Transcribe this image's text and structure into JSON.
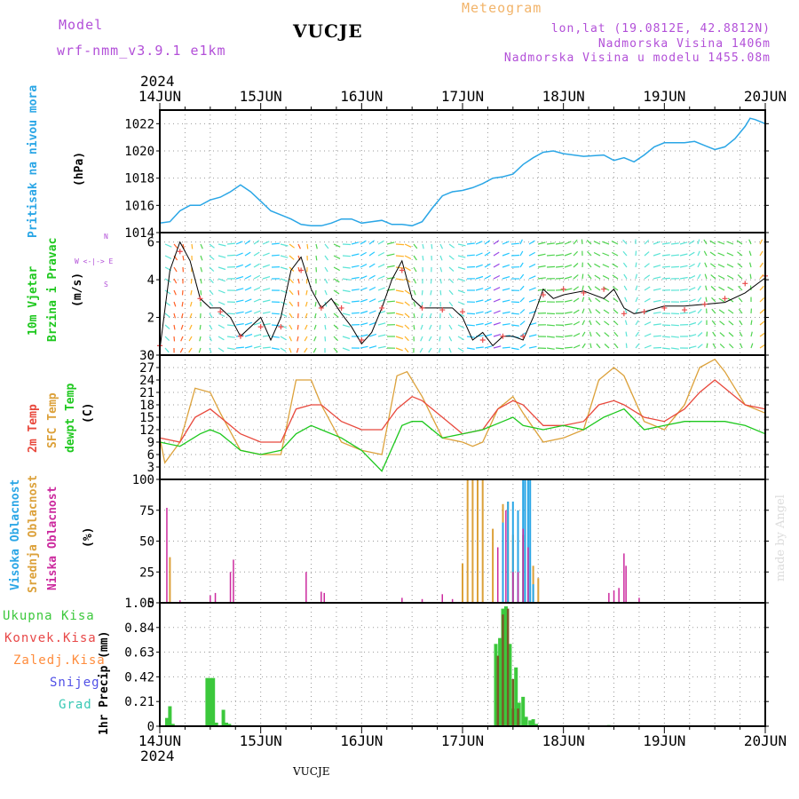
{
  "header": {
    "model_label": "Model",
    "model_value": "wrf-nmm_v3.9.1 e1km",
    "chart_title": "Meteogram",
    "station": "VUCJE",
    "lonlat": "lon,lat (19.0812E, 42.8812N)",
    "altitude": "Nadmorska Visina 1406m",
    "model_altitude": "Nadmorska Visina u modelu 1455.08m",
    "watermark": "made by Angel",
    "footer_station": "VUCJE",
    "year_top": "2024",
    "year_bottom": "2024"
  },
  "axis_labels": {
    "pressure": [
      "Pritisak na nivou mora",
      "(hPa)"
    ],
    "wind": [
      "10m Vjetar",
      "Brzina i Pravac",
      "(m/s)"
    ],
    "wind_compass": [
      "N",
      "W <-|-> E",
      "S"
    ],
    "temp": [
      "2m Temp",
      "SFC Temp",
      "dewpt Temp",
      "(C)"
    ],
    "cloud": [
      "Visoka Oblacnost",
      "Srednja Oblacnost",
      "Niska Oblacnost",
      "(%)"
    ],
    "precip_unit": "1hr Precip (mm)",
    "precip_legend": [
      "Ukupna Kisa",
      "Konvek.Kisa",
      "Zaledj.Kisa",
      "Snijeg",
      "Grad"
    ]
  },
  "colors": {
    "pressure": "#2aa6e6",
    "t2m": "#e8483c",
    "tsfc": "#dca13a",
    "dewpt": "#1ec81e",
    "wind_speed": "#000000",
    "wind_gust": "#e84a4a",
    "cloud_high": "#2aa6e6",
    "cloud_mid": "#dca13a",
    "cloud_low": "#cc2a9e",
    "rain_total": "#3cc83c",
    "rain_conv": "#e84848",
    "rain_frz": "#ff8c3c",
    "snow": "#5050e6",
    "hail": "#38c8b4",
    "model": "#b24fd8",
    "title_orange": "#f2b46a"
  },
  "chart_data": [
    {
      "type": "line",
      "id": "pressure",
      "x_categories": [
        "14JUN",
        "15JUN",
        "16JUN",
        "17JUN",
        "18JUN",
        "19JUN",
        "20JUN"
      ],
      "ylim": [
        1014,
        1023
      ],
      "yticks": [
        1014,
        1016,
        1018,
        1020,
        1022
      ],
      "grid": true,
      "series": [
        {
          "name": "Pritisak na nivou mora",
          "x_days": [
            0,
            0.1,
            0.2,
            0.3,
            0.4,
            0.5,
            0.6,
            0.7,
            0.8,
            0.9,
            1.0,
            1.1,
            1.2,
            1.3,
            1.4,
            1.5,
            1.6,
            1.7,
            1.8,
            1.9,
            2.0,
            2.1,
            2.2,
            2.3,
            2.4,
            2.5,
            2.6,
            2.7,
            2.8,
            2.9,
            3.0,
            3.1,
            3.2,
            3.3,
            3.4,
            3.5,
            3.6,
            3.7,
            3.8,
            3.9,
            4.0,
            4.2,
            4.4,
            4.5,
            4.6,
            4.7,
            4.8,
            4.9,
            5.0,
            5.2,
            5.3,
            5.4,
            5.5,
            5.6,
            5.7,
            5.8,
            5.85,
            5.9,
            6.0
          ],
          "values": [
            1014.7,
            1014.8,
            1015.6,
            1016.0,
            1016.0,
            1016.4,
            1016.6,
            1017.0,
            1017.5,
            1017.0,
            1016.3,
            1015.6,
            1015.3,
            1015.0,
            1014.6,
            1014.5,
            1014.5,
            1014.7,
            1015.0,
            1015.0,
            1014.7,
            1014.8,
            1014.9,
            1014.6,
            1014.6,
            1014.5,
            1014.8,
            1015.8,
            1016.7,
            1017.0,
            1017.1,
            1017.3,
            1017.6,
            1018.0,
            1018.1,
            1018.3,
            1019.0,
            1019.5,
            1019.9,
            1020.0,
            1019.8,
            1019.6,
            1019.7,
            1019.3,
            1019.5,
            1019.2,
            1019.7,
            1020.3,
            1020.6,
            1020.6,
            1020.7,
            1020.4,
            1020.1,
            1020.3,
            1020.9,
            1021.8,
            1022.4,
            1022.3,
            1022.0
          ]
        }
      ]
    },
    {
      "type": "line",
      "id": "wind",
      "ylim": [
        0,
        6.5
      ],
      "yticks": [
        0,
        2,
        4,
        6
      ],
      "grid": true,
      "series": [
        {
          "name": "speed",
          "x_days": [
            0,
            0.1,
            0.2,
            0.3,
            0.4,
            0.5,
            0.6,
            0.7,
            0.8,
            1.0,
            1.1,
            1.2,
            1.3,
            1.4,
            1.5,
            1.6,
            1.7,
            1.8,
            1.9,
            2.0,
            2.1,
            2.2,
            2.3,
            2.4,
            2.5,
            2.6,
            2.7,
            2.8,
            2.9,
            3.0,
            3.1,
            3.2,
            3.3,
            3.4,
            3.5,
            3.6,
            3.7,
            3.8,
            3.9,
            4.0,
            4.2,
            4.4,
            4.5,
            4.6,
            4.7,
            4.8,
            5.0,
            5.2,
            5.4,
            5.6,
            5.8,
            6.0
          ],
          "values": [
            0.3,
            4.5,
            6.0,
            5.0,
            3.0,
            2.5,
            2.5,
            2.0,
            1.0,
            2.0,
            0.8,
            2.0,
            4.5,
            5.2,
            3.5,
            2.5,
            3.0,
            2.2,
            1.5,
            0.6,
            1.2,
            2.5,
            4.0,
            5.0,
            3.0,
            2.5,
            2.5,
            2.5,
            2.5,
            2.0,
            0.8,
            1.2,
            0.5,
            1.0,
            1.0,
            0.8,
            2.0,
            3.5,
            3.0,
            3.2,
            3.4,
            3.0,
            3.5,
            2.5,
            2.2,
            2.3,
            2.6,
            2.6,
            2.7,
            2.8,
            3.3,
            4.1
          ]
        },
        {
          "name": "gust",
          "x_days": [
            0,
            0.2,
            0.4,
            0.6,
            0.8,
            1.0,
            1.2,
            1.4,
            1.6,
            1.8,
            2.0,
            2.2,
            2.4,
            2.6,
            2.8,
            3.0,
            3.2,
            3.4,
            3.6,
            3.8,
            4.0,
            4.2,
            4.4,
            4.6,
            4.8,
            5.0,
            5.2,
            5.4,
            5.6,
            5.8,
            6.0
          ],
          "values": [
            0.5,
            5.5,
            3.0,
            2.3,
            1.0,
            1.5,
            1.5,
            4.5,
            2.5,
            2.5,
            0.8,
            2.5,
            4.5,
            2.5,
            2.4,
            2.3,
            0.8,
            1.0,
            1.0,
            3.2,
            3.5,
            3.3,
            3.5,
            2.2,
            2.3,
            2.5,
            2.4,
            2.7,
            3.0,
            3.8,
            4.2
          ]
        }
      ]
    },
    {
      "type": "line",
      "id": "temperature",
      "ylim": [
        0,
        30
      ],
      "yticks": [
        3,
        6,
        9,
        12,
        15,
        18,
        21,
        24,
        27,
        30
      ],
      "grid": true,
      "series": [
        {
          "name": "2m Temp",
          "x_days": [
            0,
            0.2,
            0.35,
            0.5,
            0.6,
            0.8,
            1.0,
            1.2,
            1.35,
            1.5,
            1.6,
            1.8,
            2.0,
            2.2,
            2.35,
            2.5,
            2.6,
            2.8,
            3.0,
            3.2,
            3.35,
            3.5,
            3.6,
            3.8,
            4.0,
            4.2,
            4.35,
            4.5,
            4.6,
            4.8,
            5.0,
            5.2,
            5.35,
            5.5,
            5.6,
            5.8,
            6.0
          ],
          "values": [
            10,
            9,
            15,
            17,
            15,
            11,
            9,
            9,
            17,
            18,
            18,
            14,
            12,
            12,
            17,
            20,
            19,
            15,
            11,
            12,
            17,
            19,
            18,
            13,
            13,
            14,
            18,
            19,
            18,
            15,
            14,
            17,
            21,
            24,
            22,
            18,
            17
          ]
        },
        {
          "name": "SFC Temp",
          "x_days": [
            0,
            0.05,
            0.2,
            0.35,
            0.5,
            0.6,
            0.8,
            1.0,
            1.2,
            1.35,
            1.5,
            1.6,
            1.8,
            2.0,
            2.2,
            2.35,
            2.45,
            2.6,
            2.8,
            3.0,
            3.1,
            3.2,
            3.35,
            3.5,
            3.6,
            3.8,
            4.0,
            4.2,
            4.35,
            4.5,
            4.6,
            4.8,
            5.0,
            5.2,
            5.35,
            5.5,
            5.6,
            5.8,
            6.0
          ],
          "values": [
            10,
            4,
            9,
            22,
            21,
            16,
            7,
            6,
            6,
            24,
            24,
            18,
            9,
            7,
            6,
            25,
            26,
            20,
            10,
            9,
            8,
            9,
            17,
            20,
            16,
            9,
            10,
            12,
            24,
            27,
            25,
            14,
            12,
            18,
            27,
            29,
            26,
            18,
            16
          ]
        },
        {
          "name": "dewpt Temp",
          "x_days": [
            0,
            0.2,
            0.4,
            0.5,
            0.6,
            0.8,
            1.0,
            1.2,
            1.35,
            1.5,
            1.6,
            1.8,
            2.0,
            2.2,
            2.4,
            2.5,
            2.6,
            2.8,
            3.0,
            3.2,
            3.4,
            3.5,
            3.6,
            3.8,
            4.0,
            4.2,
            4.4,
            4.5,
            4.6,
            4.8,
            5.0,
            5.2,
            5.4,
            5.5,
            5.6,
            5.8,
            6.0
          ],
          "values": [
            9,
            8,
            11,
            12,
            11,
            7,
            6,
            7,
            11,
            13,
            12,
            10,
            7,
            2,
            13,
            14,
            14,
            10,
            11,
            12,
            14,
            15,
            13,
            12,
            13,
            12,
            15,
            16,
            17,
            12,
            13,
            14,
            14,
            14,
            14,
            13,
            11
          ]
        }
      ]
    },
    {
      "type": "bar",
      "id": "cloud",
      "ylim": [
        0,
        100
      ],
      "yticks": [
        0,
        25,
        50,
        75,
        100
      ],
      "grid": true,
      "series": [
        {
          "name": "Visoka Oblacnost",
          "x_days": [
            3.4,
            3.45,
            3.5,
            3.55,
            3.6,
            3.62,
            3.65,
            3.67,
            3.7
          ],
          "values": [
            65,
            82,
            82,
            75,
            100,
            100,
            100,
            100,
            15
          ]
        },
        {
          "name": "Srednja Oblacnost",
          "x_days": [
            0.1,
            3.0,
            3.05,
            3.1,
            3.15,
            3.2,
            3.3,
            3.4,
            3.45,
            3.5,
            3.55,
            3.6,
            3.7,
            3.75
          ],
          "values": [
            37,
            32,
            100,
            100,
            100,
            100,
            60,
            80,
            82,
            55,
            70,
            55,
            30,
            20
          ]
        },
        {
          "name": "Niska Oblacnost",
          "x_days": [
            0.07,
            0.2,
            0.5,
            0.55,
            0.7,
            0.73,
            1.45,
            1.6,
            1.63,
            2.4,
            2.6,
            2.8,
            2.9,
            3.35,
            3.43,
            3.5,
            3.55,
            3.6,
            3.65,
            4.45,
            4.5,
            4.55,
            4.6,
            4.62,
            4.75
          ],
          "values": [
            77,
            2,
            6,
            8,
            25,
            35,
            25,
            9,
            8,
            4,
            3,
            7,
            3,
            45,
            75,
            25,
            25,
            60,
            45,
            8,
            10,
            12,
            40,
            30,
            4
          ]
        }
      ]
    },
    {
      "type": "bar",
      "id": "precip",
      "ylim": [
        0,
        1.05
      ],
      "yticks": [
        0,
        0.21,
        0.42,
        0.63,
        0.84,
        1.05
      ],
      "grid": true,
      "series": [
        {
          "name": "Ukupna Kisa",
          "x_days": [
            0.07,
            0.1,
            0.13,
            0.47,
            0.5,
            0.53,
            0.56,
            0.63,
            0.66,
            0.69,
            3.33,
            3.37,
            3.4,
            3.43,
            3.47,
            3.5,
            3.53,
            3.56,
            3.6,
            3.63,
            3.67,
            3.7,
            3.73,
            4.45
          ],
          "values": [
            0.07,
            0.17,
            0.02,
            0.41,
            0.41,
            0.41,
            0.03,
            0.14,
            0.03,
            0.02,
            0.7,
            0.75,
            1.0,
            1.02,
            0.7,
            0.15,
            0.5,
            0.2,
            0.25,
            0.08,
            0.05,
            0.06,
            0.02,
            0.01
          ]
        },
        {
          "name": "Konvek.Kisa",
          "x_days": [
            3.35,
            3.4,
            3.45,
            3.5,
            3.55
          ],
          "values": [
            0.6,
            0.95,
            1.0,
            0.4,
            0.15
          ]
        }
      ]
    }
  ]
}
